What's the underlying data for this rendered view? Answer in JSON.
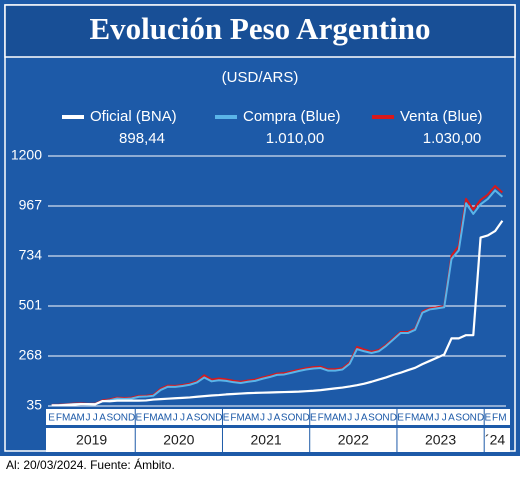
{
  "chart_data": {
    "type": "line",
    "title": "Evolución Peso Argentino",
    "subtitle": "(USD/ARS)",
    "footnote": "Al: 20/03/2024. Fuente: Ámbito.",
    "categories": [
      "E",
      "F",
      "M",
      "A",
      "M",
      "J",
      "J",
      "A",
      "S",
      "O",
      "N",
      "D",
      "E",
      "F",
      "M",
      "A",
      "M",
      "J",
      "J",
      "A",
      "S",
      "O",
      "N",
      "D",
      "E",
      "F",
      "M",
      "A",
      "M",
      "J",
      "J",
      "A",
      "S",
      "O",
      "N",
      "D",
      "E",
      "F",
      "M",
      "A",
      "M",
      "J",
      "J",
      "A",
      "S",
      "O",
      "N",
      "D",
      "E",
      "F",
      "M",
      "A",
      "M",
      "J",
      "J",
      "A",
      "S",
      "O",
      "N",
      "D",
      "E",
      "F",
      "M"
    ],
    "years": [
      "2019",
      "2020",
      "2021",
      "2022",
      "2023",
      "´24"
    ],
    "ylim": [
      35,
      1200
    ],
    "yticks": [
      35,
      268,
      501,
      734,
      967,
      1200
    ],
    "grid": true,
    "series": [
      {
        "name": "Oficial (BNA)",
        "latest": "898,44",
        "color": "#ffffff",
        "values": [
          38,
          38,
          40,
          42,
          44,
          44,
          43,
          58,
          57,
          60,
          60,
          60,
          60,
          61,
          65,
          67,
          69,
          71,
          73,
          75,
          78,
          81,
          84,
          86,
          89,
          91,
          93,
          95,
          96,
          97,
          98,
          99,
          100,
          101,
          102,
          104,
          106,
          109,
          113,
          117,
          121,
          126,
          132,
          139,
          148,
          158,
          168,
          180,
          190,
          202,
          213,
          230,
          245,
          260,
          275,
          350,
          350,
          365,
          365,
          820,
          830,
          850,
          898.44
        ]
      },
      {
        "name": "Compra (Blue)",
        "latest": "1.010,00",
        "color": "#5ab4e8",
        "values": [
          38,
          39,
          42,
          44,
          45,
          43,
          44,
          57,
          62,
          70,
          68,
          70,
          78,
          79,
          83,
          110,
          125,
          124,
          128,
          134,
          145,
          168,
          150,
          155,
          152,
          146,
          142,
          148,
          152,
          162,
          170,
          180,
          182,
          190,
          198,
          205,
          210,
          212,
          200,
          200,
          205,
          232,
          300,
          290,
          282,
          290,
          315,
          345,
          375,
          375,
          390,
          470,
          485,
          490,
          495,
          720,
          760,
          980,
          930,
          975,
          1000,
          1040,
          1010
        ]
      },
      {
        "name": "Venta (Blue)",
        "latest": "1.030,00",
        "color": "#d7191c",
        "values": [
          40,
          41,
          44,
          46,
          47,
          45,
          46,
          61,
          66,
          74,
          72,
          74,
          82,
          83,
          87,
          116,
          130,
          129,
          133,
          139,
          150,
          178,
          158,
          163,
          159,
          153,
          148,
          154,
          158,
          168,
          176,
          186,
          188,
          196,
          204,
          211,
          216,
          218,
          206,
          206,
          211,
          238,
          310,
          298,
          288,
          296,
          320,
          350,
          380,
          380,
          395,
          475,
          490,
          495,
          500,
          735,
          780,
          1000,
          950,
          995,
          1020,
          1060,
          1030
        ]
      }
    ]
  }
}
